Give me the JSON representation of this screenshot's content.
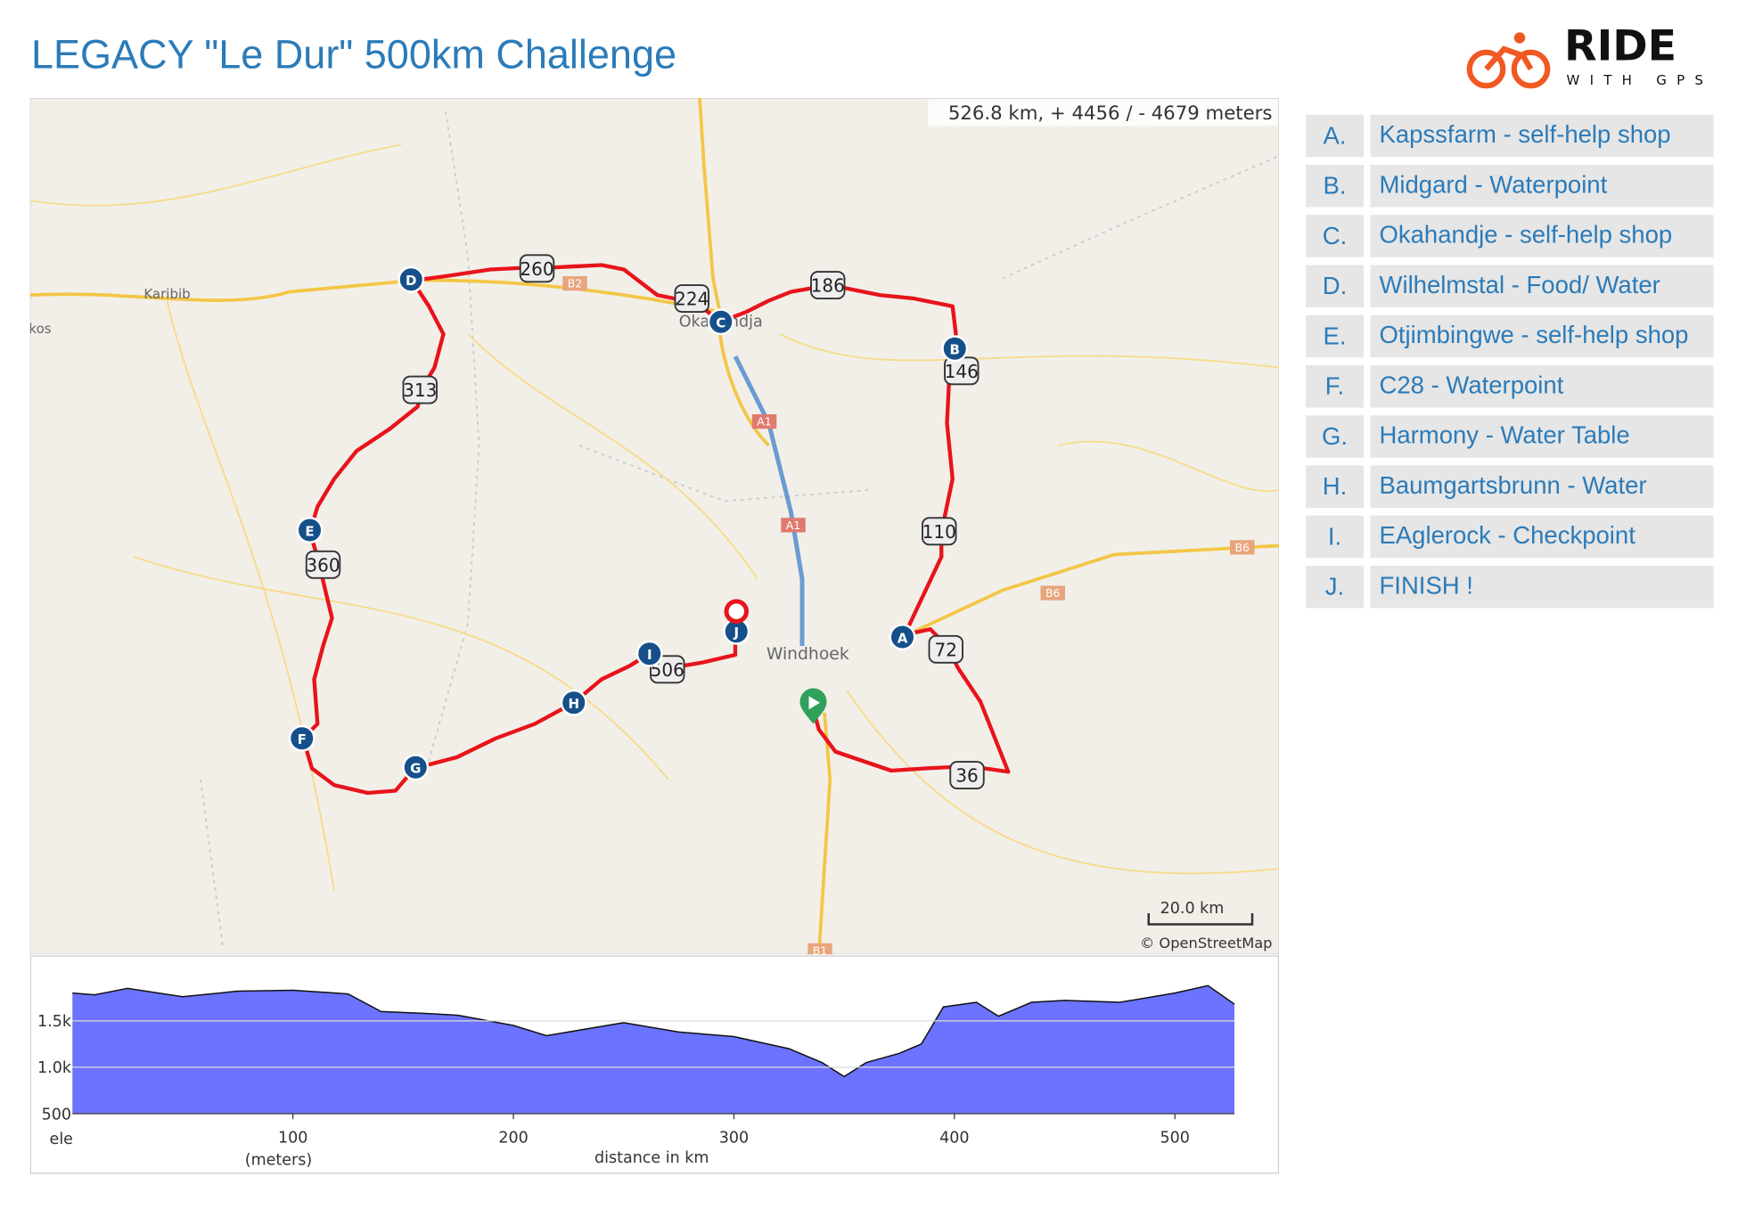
{
  "header": {
    "title": "LEGACY \"Le Dur\" 500km Challenge",
    "logo_main": "RIDE",
    "logo_sub": "WITH GPS"
  },
  "map": {
    "stats": "526.8 km, + 4456 / - 4679 meters",
    "scale": "20.0 km",
    "attribution": "© OpenStreetMap",
    "places": [
      "Karibib",
      "kos",
      "Okahandja",
      "Windhoek"
    ],
    "roads": [
      "A1",
      "A1",
      "B2",
      "B6",
      "B6",
      "B1"
    ],
    "km_markers": [
      "260",
      "224",
      "186",
      "146",
      "313",
      "110",
      "360",
      "72",
      "36",
      "506"
    ]
  },
  "waypoints": [
    {
      "marker": "A",
      "label": "A.",
      "name": "Kapssfarm - self-help shop"
    },
    {
      "marker": "B",
      "label": "B.",
      "name": "Midgard - Waterpoint"
    },
    {
      "marker": "C",
      "label": "C.",
      "name": "Okahandje - self-help shop"
    },
    {
      "marker": "D",
      "label": "D.",
      "name": "Wilhelmstal - Food/ Water"
    },
    {
      "marker": "E",
      "label": "E.",
      "name": "Otjimbingwe - self-help shop"
    },
    {
      "marker": "F",
      "label": "F.",
      "name": "C28 - Waterpoint"
    },
    {
      "marker": "G",
      "label": "G.",
      "name": "Harmony - Water Table"
    },
    {
      "marker": "H",
      "label": "H.",
      "name": "Baumgartsbrunn - Water"
    },
    {
      "marker": "I",
      "label": "I.",
      "name": "EAglerock - Checkpoint"
    },
    {
      "marker": "J",
      "label": "J.",
      "name": "FINISH !"
    }
  ],
  "chart_data": {
    "type": "area",
    "color": "#6b73ff",
    "x": [
      0,
      10,
      25,
      50,
      75,
      100,
      125,
      140,
      160,
      175,
      200,
      215,
      235,
      250,
      275,
      300,
      325,
      340,
      350,
      360,
      375,
      385,
      395,
      410,
      420,
      435,
      450,
      475,
      500,
      515,
      527
    ],
    "values": [
      1800,
      1780,
      1850,
      1760,
      1820,
      1830,
      1790,
      1600,
      1580,
      1560,
      1450,
      1340,
      1420,
      1480,
      1380,
      1330,
      1200,
      1050,
      900,
      1050,
      1150,
      1250,
      1650,
      1700,
      1550,
      1700,
      1720,
      1700,
      1800,
      1880,
      1680
    ],
    "xlim": [
      0,
      527
    ],
    "ylim": [
      500,
      2000
    ],
    "xticks": [
      100,
      200,
      300,
      400,
      500
    ],
    "yticks": [
      500,
      {
        "value": 1000,
        "label": "1.0k"
      },
      {
        "value": 1500,
        "label": "1.5k"
      }
    ],
    "ylabel": "ele",
    "ylabel_unit": "(meters)",
    "xlabel": "distance in km",
    "grid": true
  }
}
